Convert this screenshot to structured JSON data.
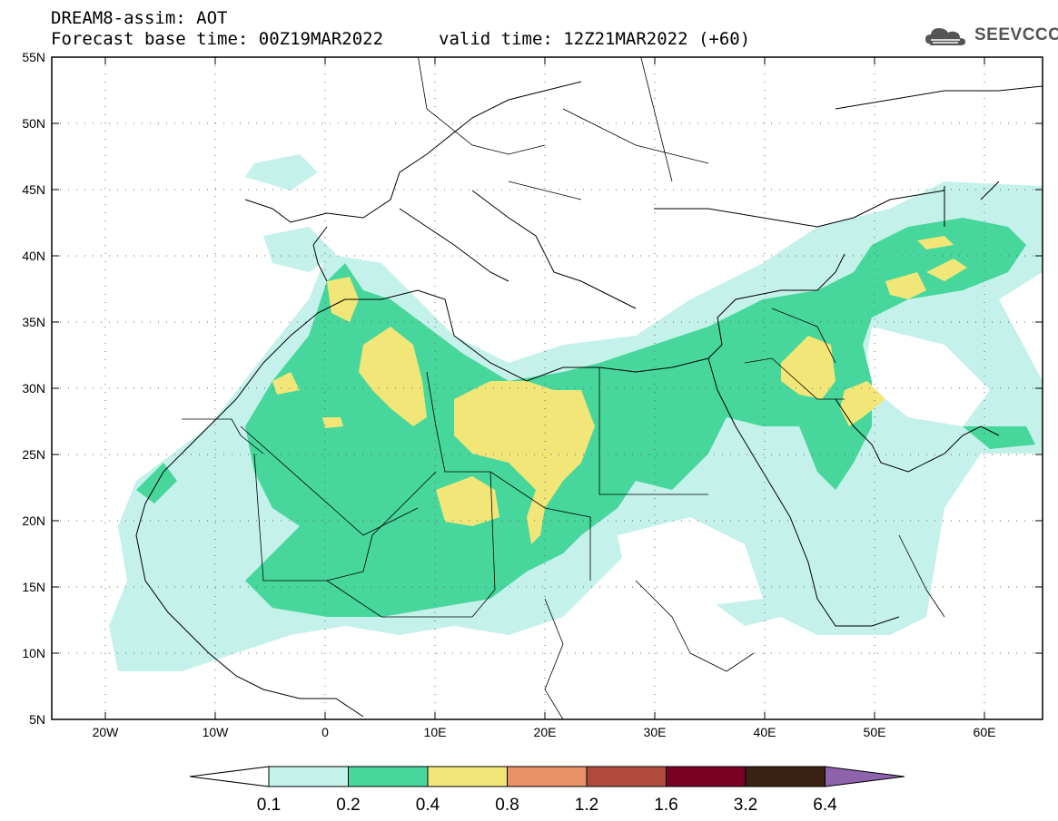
{
  "header": {
    "product": "DREAM8-assim: AOT",
    "base_time": "Forecast base time: 00Z19MAR2022",
    "valid_time": "valid time: 12Z21MAR2022 (+60)",
    "logo_text": "SEEVCCC"
  },
  "map": {
    "lat_range": [
      5,
      55
    ],
    "lon_range": [
      -25,
      65
    ],
    "lat_labels": [
      "55N",
      "50N",
      "45N",
      "40N",
      "35N",
      "30N",
      "25N",
      "20N",
      "15N",
      "10N",
      "5N"
    ],
    "lon_labels": [
      "20W",
      "10W",
      "0",
      "10E",
      "20E",
      "30E",
      "40E",
      "50E",
      "60E"
    ]
  },
  "colorbar": {
    "labels": [
      "0.1",
      "0.2",
      "0.4",
      "0.8",
      "1.2",
      "1.6",
      "3.2",
      "6.4"
    ],
    "colors": [
      "#c4f1ea",
      "#47d69b",
      "#f3e679",
      "#e89066",
      "#b04b3e",
      "#7a0024",
      "#3a2112",
      "#8f63ab"
    ]
  }
}
